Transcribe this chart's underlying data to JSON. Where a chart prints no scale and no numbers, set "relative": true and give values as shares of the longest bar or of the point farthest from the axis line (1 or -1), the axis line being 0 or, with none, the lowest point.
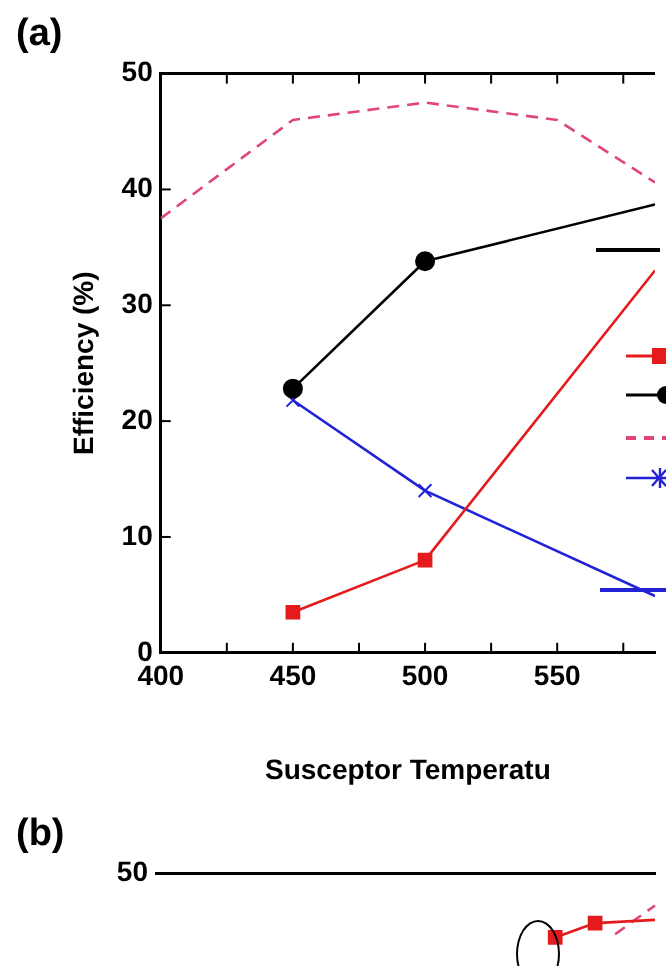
{
  "chart_data": [
    {
      "type": "line",
      "title": "(a)",
      "xlabel": "Susceptor Temperatu",
      "ylabel": "Efficiency (%)",
      "xlim": [
        400,
        587
      ],
      "xticks": [
        400,
        {
          "value": 425,
          "label": null
        },
        450,
        {
          "value": 475,
          "label": null
        },
        500,
        {
          "value": 525,
          "label": null
        },
        550,
        {
          "value": 575,
          "label": null
        }
      ],
      "ylim": [
        0,
        50
      ],
      "yticks": [
        0,
        10,
        20,
        30,
        40,
        50
      ],
      "series": [
        {
          "color": "#e41a1c",
          "marker": "square",
          "x": [
            450,
            500,
            587
          ],
          "values": [
            3.5,
            8,
            33
          ]
        },
        {
          "color": "#000000",
          "marker": "circle",
          "x": [
            450,
            500,
            587
          ],
          "values": [
            22.8,
            33.8,
            38.7
          ]
        },
        {
          "color": "#e0457b",
          "marker": "none",
          "line_style": "dashed",
          "x": [
            400,
            450,
            500,
            550,
            587
          ],
          "values": [
            37.5,
            46,
            47.5,
            46,
            40.6
          ]
        },
        {
          "color": "#2222d8",
          "marker": "cross",
          "x": [
            450,
            500,
            587
          ],
          "values": [
            21.8,
            14,
            4.9
          ]
        }
      ]
    },
    {
      "type": "line",
      "title": "(b)",
      "relative": true,
      "annotations": [
        "50"
      ],
      "categories": [
        null,
        null,
        null,
        null,
        null,
        null,
        null,
        null,
        null,
        null,
        null,
        null,
        null,
        null,
        null,
        null,
        null,
        null,
        null,
        null,
        null,
        null,
        null,
        null,
        null,
        null
      ],
      "series": [
        {
          "color": "#e41a1c",
          "marker": "square",
          "values": [
            null,
            null,
            null,
            null,
            null,
            null,
            null,
            null,
            null,
            null,
            null,
            null,
            null,
            null,
            null,
            null,
            null,
            null,
            null,
            null,
            0,
            null,
            0.45,
            null,
            null,
            0.55
          ]
        },
        {
          "color": "#e0457b",
          "marker": "none",
          "line_style": "dashed",
          "values": [
            null,
            null,
            null,
            null,
            null,
            null,
            null,
            null,
            null,
            null,
            null,
            null,
            null,
            null,
            null,
            null,
            null,
            null,
            null,
            null,
            null,
            null,
            null,
            0.1,
            null,
            1
          ]
        }
      ]
    }
  ]
}
